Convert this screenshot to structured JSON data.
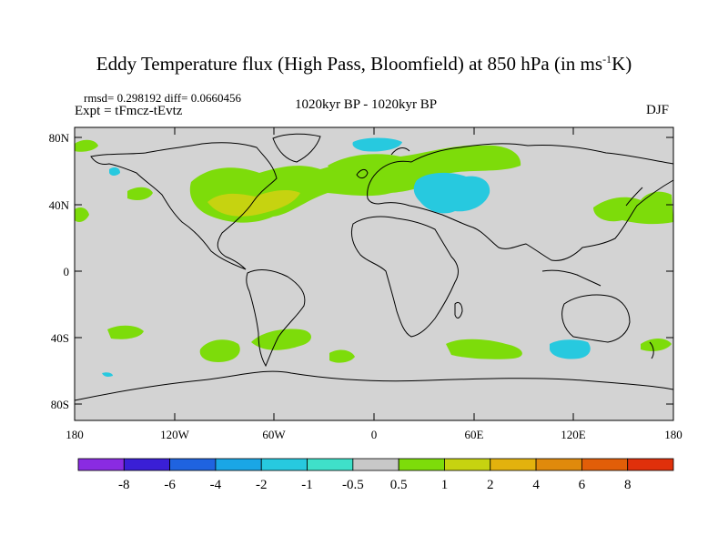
{
  "title": {
    "main": "Eddy Temperature flux (High Pass, Bloomfield) at 850 hPa (in ms",
    "sup": "-1",
    "end": "K)"
  },
  "stats": "rmsd= 0.298192  diff= 0.0660456",
  "experiment": "Expt = tFmcz-tEvtz",
  "period": "1020kyr BP - 1020kyr BP",
  "season": "DJF",
  "axes": {
    "y_ticks": [
      "80N",
      "40N",
      "0",
      "40S",
      "80S"
    ],
    "x_ticks": [
      "180",
      "120W",
      "60W",
      "0",
      "60E",
      "120E",
      "180"
    ]
  },
  "colorbar": {
    "colors": [
      "#8a2be2",
      "#3a1fd6",
      "#1f63e0",
      "#1aa6e6",
      "#27c9df",
      "#3fe0c9",
      "#c8c8c8",
      "#7ddc0a",
      "#c6d310",
      "#e3b20d",
      "#e08a0c",
      "#e25e08",
      "#e0300b"
    ],
    "labels": [
      "-8",
      "-6",
      "-4",
      "-2",
      "-1",
      "-0.5",
      "0.5",
      "1",
      "2",
      "4",
      "6",
      "8"
    ]
  },
  "map": {
    "ocean_fill": "#d3d3d3",
    "coast_color": "#000000"
  }
}
